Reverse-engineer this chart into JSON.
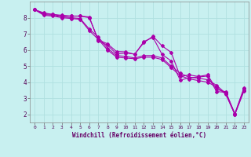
{
  "xlabel": "Windchill (Refroidissement éolien,°C)",
  "background_color": "#c8f0f0",
  "grid_color": "#b0e0e0",
  "line_color": "#aa00aa",
  "xlim": [
    -0.5,
    23.5
  ],
  "ylim": [
    1.5,
    9.0
  ],
  "xticks": [
    0,
    1,
    2,
    3,
    4,
    5,
    6,
    7,
    8,
    9,
    10,
    11,
    12,
    13,
    14,
    15,
    16,
    17,
    18,
    19,
    20,
    21,
    22,
    23
  ],
  "yticks": [
    2,
    3,
    4,
    5,
    6,
    7,
    8
  ],
  "series": [
    [
      8.5,
      8.3,
      8.2,
      8.15,
      8.1,
      8.1,
      8.05,
      6.55,
      6.3,
      5.75,
      5.8,
      5.75,
      6.45,
      6.85,
      6.25,
      5.85,
      4.35,
      4.45,
      4.35,
      4.45,
      3.55,
      3.4,
      2.05,
      3.65
    ],
    [
      8.5,
      8.25,
      8.2,
      8.1,
      8.1,
      8.1,
      8.0,
      6.62,
      6.38,
      5.9,
      5.88,
      5.72,
      6.52,
      6.78,
      5.72,
      5.32,
      4.12,
      4.28,
      4.32,
      4.38,
      3.42,
      3.37,
      2.02,
      3.57
    ],
    [
      8.5,
      8.2,
      8.15,
      8.05,
      8.0,
      7.95,
      7.3,
      6.8,
      6.1,
      5.65,
      5.6,
      5.5,
      5.65,
      5.65,
      5.5,
      5.0,
      4.55,
      4.3,
      4.25,
      4.15,
      3.8,
      3.3,
      2.0,
      3.5
    ],
    [
      8.5,
      8.15,
      8.1,
      8.0,
      7.95,
      7.9,
      7.2,
      6.65,
      6.0,
      5.55,
      5.5,
      5.45,
      5.55,
      5.55,
      5.4,
      4.9,
      4.4,
      4.2,
      4.1,
      4.0,
      3.7,
      3.25,
      2.0,
      3.45
    ]
  ],
  "marker": "D",
  "markersize": 2,
  "linewidth": 0.8
}
